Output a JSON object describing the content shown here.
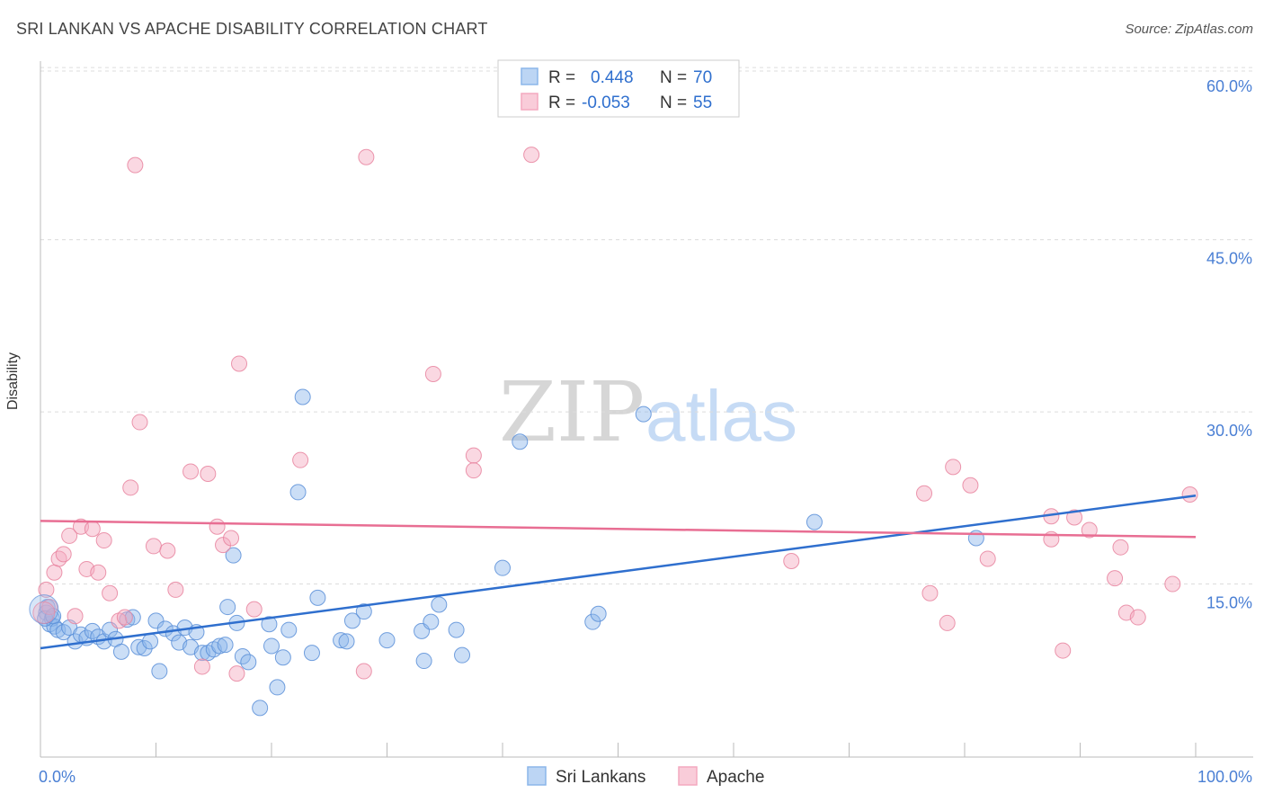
{
  "title": "SRI LANKAN VS APACHE DISABILITY CORRELATION CHART",
  "source": "Source: ZipAtlas.com",
  "watermark": {
    "zip": "ZIP",
    "atlas": "atlas"
  },
  "stats": [
    {
      "r_label": "R =",
      "r_value": "0.448",
      "n_label": "N =",
      "n_value": "70",
      "color": "#8bb6ea"
    },
    {
      "r_label": "R =",
      "r_value": "-0.053",
      "n_label": "N =",
      "n_value": "55",
      "color": "#f4a9bf"
    }
  ],
  "chart_data": {
    "type": "scatter",
    "title": "SRI LANKAN VS APACHE DISABILITY CORRELATION CHART",
    "xlabel": "",
    "ylabel": "Disability",
    "xlim": [
      0,
      100
    ],
    "ylim": [
      0,
      61.5
    ],
    "y_ticks": [
      {
        "value": 15,
        "label": "15.0%"
      },
      {
        "value": 30,
        "label": "30.0%"
      },
      {
        "value": 45,
        "label": "45.0%"
      },
      {
        "value": 60,
        "label": "60.0%"
      }
    ],
    "x_ticks": [
      {
        "value": 0,
        "label": "0.0%"
      },
      {
        "value": 100,
        "label": "100.0%"
      }
    ],
    "grid": true,
    "legend_position": "bottom-center",
    "series": [
      {
        "name": "Sri Lankans",
        "color": "#8bb6ea",
        "stroke": "#5b8fd8",
        "trend": {
          "x": [
            0,
            100
          ],
          "y": [
            9.4,
            22.7
          ],
          "color": "#2f6fce"
        },
        "points": [
          [
            0.5,
            12.5
          ],
          [
            0.6,
            13.0
          ],
          [
            0.8,
            11.5
          ],
          [
            1.0,
            12.0
          ],
          [
            1.2,
            11.3
          ],
          [
            1.5,
            11.0
          ],
          [
            2.0,
            10.8
          ],
          [
            2.5,
            11.2
          ],
          [
            3.0,
            10.0
          ],
          [
            3.5,
            10.6
          ],
          [
            4.0,
            10.3
          ],
          [
            4.5,
            10.9
          ],
          [
            5.0,
            10.4
          ],
          [
            5.5,
            10.0
          ],
          [
            6.0,
            11.0
          ],
          [
            6.5,
            10.2
          ],
          [
            7.0,
            9.1
          ],
          [
            7.5,
            11.9
          ],
          [
            8.0,
            12.1
          ],
          [
            8.5,
            9.5
          ],
          [
            9.0,
            9.4
          ],
          [
            9.5,
            10.0
          ],
          [
            10.0,
            11.8
          ],
          [
            10.3,
            7.4
          ],
          [
            10.8,
            11.1
          ],
          [
            11.5,
            10.7
          ],
          [
            12.0,
            9.9
          ],
          [
            12.5,
            11.2
          ],
          [
            13.0,
            9.5
          ],
          [
            13.5,
            10.8
          ],
          [
            14.0,
            9.0
          ],
          [
            14.5,
            9.0
          ],
          [
            15.0,
            9.3
          ],
          [
            15.5,
            9.6
          ],
          [
            16.0,
            9.7
          ],
          [
            16.2,
            13.0
          ],
          [
            16.7,
            17.5
          ],
          [
            17.0,
            11.6
          ],
          [
            17.5,
            8.7
          ],
          [
            18.0,
            8.2
          ],
          [
            19.0,
            4.2
          ],
          [
            19.8,
            11.5
          ],
          [
            20.0,
            9.6
          ],
          [
            20.5,
            6.0
          ],
          [
            21.0,
            8.6
          ],
          [
            21.5,
            11.0
          ],
          [
            22.3,
            23.0
          ],
          [
            22.7,
            31.3
          ],
          [
            23.5,
            9.0
          ],
          [
            24.0,
            13.8
          ],
          [
            26.0,
            10.1
          ],
          [
            26.5,
            10.0
          ],
          [
            27.0,
            11.8
          ],
          [
            28.0,
            12.6
          ],
          [
            30.0,
            10.1
          ],
          [
            33.0,
            10.9
          ],
          [
            33.2,
            8.3
          ],
          [
            33.8,
            11.7
          ],
          [
            34.5,
            13.2
          ],
          [
            36.0,
            11.0
          ],
          [
            36.5,
            8.8
          ],
          [
            40.0,
            16.4
          ],
          [
            41.5,
            27.4
          ],
          [
            47.8,
            11.7
          ],
          [
            48.3,
            12.4
          ],
          [
            52.2,
            29.8
          ],
          [
            67.0,
            20.4
          ],
          [
            81.0,
            19.0
          ],
          [
            0.4,
            12.0
          ],
          [
            1.1,
            12.2
          ]
        ]
      },
      {
        "name": "Apache",
        "color": "#f4a9bf",
        "stroke": "#e7849f",
        "trend": {
          "x": [
            0,
            100
          ],
          "y": [
            20.5,
            19.1
          ],
          "color": "#e86e93"
        },
        "points": [
          [
            0.5,
            14.5
          ],
          [
            0.8,
            13.0
          ],
          [
            1.2,
            16.0
          ],
          [
            1.6,
            17.2
          ],
          [
            2.0,
            17.6
          ],
          [
            2.5,
            19.2
          ],
          [
            3.0,
            12.2
          ],
          [
            3.5,
            20.0
          ],
          [
            4.0,
            16.3
          ],
          [
            4.5,
            19.8
          ],
          [
            5.0,
            16.0
          ],
          [
            5.5,
            18.8
          ],
          [
            6.0,
            14.2
          ],
          [
            6.8,
            11.8
          ],
          [
            7.3,
            12.1
          ],
          [
            7.8,
            23.4
          ],
          [
            8.2,
            51.5
          ],
          [
            8.6,
            29.1
          ],
          [
            9.8,
            18.3
          ],
          [
            11.0,
            17.9
          ],
          [
            11.7,
            14.5
          ],
          [
            13.0,
            24.8
          ],
          [
            14.0,
            7.8
          ],
          [
            14.5,
            24.6
          ],
          [
            15.3,
            20.0
          ],
          [
            15.8,
            18.4
          ],
          [
            16.5,
            19.0
          ],
          [
            17.0,
            7.2
          ],
          [
            17.2,
            34.2
          ],
          [
            18.5,
            12.8
          ],
          [
            22.5,
            25.8
          ],
          [
            28.0,
            7.4
          ],
          [
            28.2,
            52.2
          ],
          [
            34.0,
            33.3
          ],
          [
            37.5,
            26.2
          ],
          [
            37.5,
            24.9
          ],
          [
            42.5,
            52.4
          ],
          [
            65.0,
            17.0
          ],
          [
            76.5,
            22.9
          ],
          [
            77.0,
            14.2
          ],
          [
            78.5,
            11.6
          ],
          [
            79.0,
            25.2
          ],
          [
            80.5,
            23.6
          ],
          [
            82.0,
            17.2
          ],
          [
            87.5,
            20.9
          ],
          [
            87.5,
            18.9
          ],
          [
            88.5,
            9.2
          ],
          [
            89.5,
            20.8
          ],
          [
            90.8,
            19.7
          ],
          [
            93.0,
            15.5
          ],
          [
            93.5,
            18.2
          ],
          [
            94.0,
            12.5
          ],
          [
            95.0,
            12.1
          ],
          [
            98.0,
            15.0
          ],
          [
            99.5,
            22.8
          ]
        ]
      }
    ]
  },
  "legend": [
    {
      "label": "Sri Lankans",
      "color": "#bcd5f4",
      "border": "#8bb6ea"
    },
    {
      "label": "Apache",
      "color": "#f9ccd9",
      "border": "#f4a9bf"
    }
  ]
}
